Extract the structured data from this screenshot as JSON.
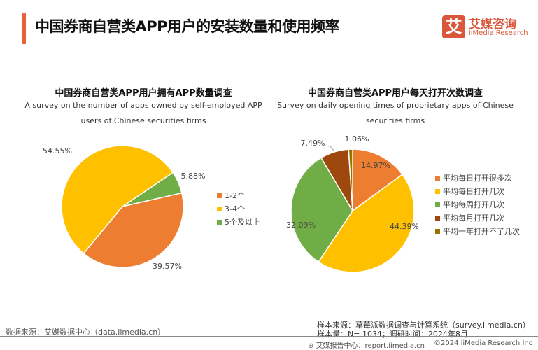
{
  "header": {
    "title": "中国券商自营类APP用户的安装数量和使用频率",
    "logo_mark": "艾",
    "logo_cn": "艾媒咨询",
    "logo_en": "iiMedia Research"
  },
  "chart_data": [
    {
      "type": "pie",
      "title": "中国券商自营类APP用户拥有APP数量调查",
      "subtitle": "A survey on the number of apps owned by self-employed APP users of Chinese securities firms",
      "categories": [
        "1-2个",
        "3-4个",
        "5个及以上"
      ],
      "values": [
        39.57,
        54.55,
        5.88
      ],
      "labels": [
        "39.57%",
        "54.55%",
        "5.88%"
      ],
      "colors": [
        "#ED7D31",
        "#FFC000",
        "#70AD47"
      ],
      "legend": "right"
    },
    {
      "type": "pie",
      "title": "中国券商自营类APP用户每天打开次数调查",
      "subtitle": "Survey on daily opening times of proprietary apps of Chinese securities firms",
      "categories": [
        "平均每日打开很多次",
        "平均每日打开几次",
        "平均每周打开几次",
        "平均每月打开几次",
        "平均一年打开不了几次"
      ],
      "values": [
        14.97,
        44.39,
        32.09,
        7.49,
        1.06
      ],
      "labels": [
        "14.97%",
        "44.39%",
        "32.09%",
        "7.49%",
        "1.06%"
      ],
      "colors": [
        "#ED7D31",
        "#FFC000",
        "#70AD47",
        "#9E480E",
        "#997300"
      ],
      "legend": "right"
    }
  ],
  "footer": {
    "data_source": "数据来源：艾媒数据中心（data.iimedia.cn）",
    "sample_source": "样本来源：草莓派数据调查与计算系统（survey.iimedia.cn）",
    "sample_size": "样本量：N= 1034；调研时间：2024年8月",
    "report_center": "艾媒报告中心：report.iimedia.cn",
    "copyright": "©2024  iiMedia Research  Inc"
  }
}
